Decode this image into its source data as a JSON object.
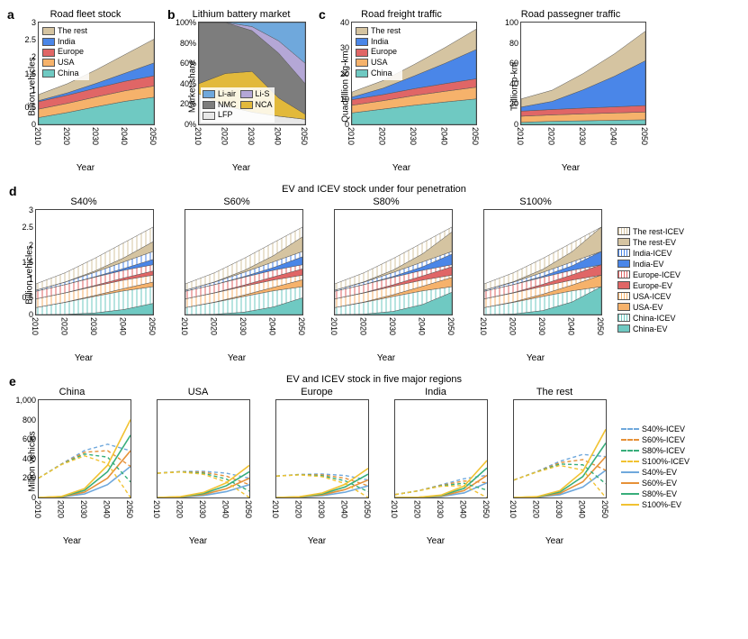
{
  "years": [
    2010,
    2020,
    2030,
    2040,
    2050
  ],
  "xticks": [
    "2010",
    "2020",
    "2030",
    "2040",
    "2050"
  ],
  "palette": {
    "china": "#6fc9c2",
    "usa": "#f6b26b",
    "europe": "#e06666",
    "india": "#4a86e8",
    "rest": "#d5c4a1"
  },
  "hatch_bg": "#ffffff",
  "a": {
    "label": "a",
    "title": "Road fleet stock",
    "ylabel": "Billion vehicles",
    "xlabel": "Year",
    "ylim": [
      0,
      3.0
    ],
    "ytick_step": 0.5,
    "series": {
      "china": [
        0.2,
        0.35,
        0.52,
        0.68,
        0.8
      ],
      "usa": [
        0.25,
        0.27,
        0.29,
        0.31,
        0.33
      ],
      "europe": [
        0.22,
        0.24,
        0.26,
        0.28,
        0.3
      ],
      "india": [
        0.03,
        0.07,
        0.14,
        0.24,
        0.38
      ],
      "rest": [
        0.18,
        0.27,
        0.4,
        0.55,
        0.7
      ]
    },
    "legend_order": [
      "rest",
      "india",
      "europe",
      "usa",
      "china"
    ],
    "legend_labels": {
      "rest": "The rest",
      "india": "India",
      "europe": "Europe",
      "usa": "USA",
      "china": "China"
    }
  },
  "b": {
    "label": "b",
    "title": "Lithium battery market",
    "ylabel": "Market share",
    "xlabel": "Year",
    "ylim": [
      0,
      100
    ],
    "ytick_step": 20,
    "colors": {
      "lfp": "#e8e8e8",
      "nca": "#e2b93b",
      "nmc": "#7d7d7d",
      "li_s": "#b4a7d6",
      "li_air": "#6fa8dc"
    },
    "series": {
      "lfp": [
        30,
        18,
        12,
        8,
        5
      ],
      "nca": [
        10,
        32,
        40,
        18,
        5
      ],
      "nmc": [
        60,
        50,
        40,
        44,
        30
      ],
      "li_s": [
        0,
        0,
        4,
        12,
        20
      ],
      "li_air": [
        0,
        0,
        4,
        18,
        40
      ]
    },
    "legend": [
      {
        "k": "li_air",
        "label": "Li-air"
      },
      {
        "k": "li_s",
        "label": "Li-S"
      },
      {
        "k": "nmc",
        "label": "NMC"
      },
      {
        "k": "nca",
        "label": "NCA"
      },
      {
        "k": "lfp",
        "label": "LFP"
      }
    ]
  },
  "c1": {
    "title": "Road freight traffic",
    "ylabel": "Quadrillion Kg-km",
    "xlabel": "Year",
    "ylim": [
      0,
      40
    ],
    "ytick_step": 10,
    "series": {
      "china": [
        4.5,
        6.0,
        7.5,
        8.8,
        10.0
      ],
      "usa": [
        3.0,
        3.3,
        3.8,
        4.2,
        4.6
      ],
      "europe": [
        2.2,
        2.4,
        2.7,
        3.0,
        3.3
      ],
      "india": [
        1.0,
        2.5,
        5.0,
        8.0,
        11.5
      ],
      "rest": [
        2.0,
        3.0,
        4.5,
        6.2,
        8.0
      ]
    }
  },
  "c2": {
    "title": "Road passegner traffic",
    "ylabel": "Trillion p-km",
    "xlabel": "Year",
    "ylim": [
      0,
      100
    ],
    "ytick_step": 20,
    "series": {
      "china": [
        2.0,
        3.0,
        3.5,
        4.0,
        4.5
      ],
      "usa": [
        6.0,
        6.3,
        6.8,
        7.2,
        7.6
      ],
      "europe": [
        5.0,
        5.3,
        5.7,
        6.0,
        6.4
      ],
      "india": [
        4.0,
        8.0,
        18.0,
        30.0,
        44.0
      ],
      "rest": [
        8.0,
        11.0,
        16.0,
        22.0,
        29.0
      ]
    },
    "dip_years": [
      2020,
      2021
    ],
    "dip_factor": 0.82
  },
  "c_label": "c",
  "c_legend_order": [
    "rest",
    "india",
    "europe",
    "usa",
    "china"
  ],
  "c_legend_labels": {
    "rest": "The rest",
    "india": "India",
    "europe": "Europe",
    "usa": "USA",
    "china": "China"
  },
  "d": {
    "label": "d",
    "main_title": "EV and ICEV stock under four penetration",
    "ylabel": "Billion vehicles",
    "xlabel": "Year",
    "ylim": [
      0,
      3.0
    ],
    "ytick_step": 0.5,
    "scenarios": [
      "S40%",
      "S60%",
      "S80%",
      "S100%"
    ],
    "ev_frac_2050": {
      "S40%": 0.4,
      "S60%": 0.6,
      "S80%": 0.8,
      "S100%": 1.0
    },
    "totals": {
      "china": [
        0.2,
        0.35,
        0.52,
        0.68,
        0.8
      ],
      "usa": [
        0.25,
        0.27,
        0.29,
        0.31,
        0.33
      ],
      "europe": [
        0.22,
        0.24,
        0.26,
        0.28,
        0.3
      ],
      "india": [
        0.03,
        0.07,
        0.14,
        0.24,
        0.38
      ],
      "rest": [
        0.18,
        0.27,
        0.4,
        0.55,
        0.7
      ]
    },
    "legend": [
      {
        "label": "The rest-ICEV",
        "color": "#d5c4a1",
        "hatch": true
      },
      {
        "label": "The rest-EV",
        "color": "#d5c4a1",
        "hatch": false
      },
      {
        "label": "India-ICEV",
        "color": "#4a86e8",
        "hatch": true
      },
      {
        "label": "India-EV",
        "color": "#4a86e8",
        "hatch": false
      },
      {
        "label": "Europe-ICEV",
        "color": "#e06666",
        "hatch": true
      },
      {
        "label": "Europe-EV",
        "color": "#e06666",
        "hatch": false
      },
      {
        "label": "USA-ICEV",
        "color": "#f6b26b",
        "hatch": true
      },
      {
        "label": "USA-EV",
        "color": "#f6b26b",
        "hatch": false
      },
      {
        "label": "China-ICEV",
        "color": "#6fc9c2",
        "hatch": true
      },
      {
        "label": "China-EV",
        "color": "#6fc9c2",
        "hatch": false
      }
    ]
  },
  "e": {
    "label": "e",
    "main_title": "EV and ICEV stock in five major regions",
    "ylabel": "Million vehicles",
    "xlabel": "Year",
    "ylim": [
      0,
      1000
    ],
    "yticks": [
      0,
      200,
      400,
      600,
      800,
      1000
    ],
    "ytick_labels": [
      "0",
      "200",
      "400",
      "600",
      "800",
      "1,000"
    ],
    "regions": [
      "China",
      "USA",
      "Europe",
      "India",
      "The rest"
    ],
    "region_keys": [
      "china",
      "usa",
      "europe",
      "india",
      "rest"
    ],
    "totals_million": {
      "china": [
        200,
        350,
        520,
        680,
        800
      ],
      "usa": [
        250,
        270,
        290,
        310,
        330
      ],
      "europe": [
        220,
        240,
        260,
        280,
        300
      ],
      "india": [
        30,
        70,
        140,
        240,
        380
      ],
      "rest": [
        180,
        270,
        400,
        550,
        700
      ]
    },
    "scen_colors": {
      "S40%": "#6fa8dc",
      "S60%": "#e69138",
      "S80%": "#38a e7b",
      "S100%": "#f1c232"
    },
    "scen_colors_fixed": {
      "S40%": "#6fa8dc",
      "S60%": "#e69138",
      "S80%": "#38ae7b",
      "S100%": "#f1c232"
    },
    "scenarios": [
      "S40%",
      "S60%",
      "S80%",
      "S100%"
    ],
    "ev_frac_2050": {
      "S40%": 0.4,
      "S60%": 0.6,
      "S80%": 0.8,
      "S100%": 1.0
    },
    "legend": [
      {
        "label": "S40%-ICEV",
        "color": "#6fa8dc",
        "dash": true
      },
      {
        "label": "S60%-ICEV",
        "color": "#e69138",
        "dash": true
      },
      {
        "label": "S80%-ICEV",
        "color": "#38ae7b",
        "dash": true
      },
      {
        "label": "S100%-ICEV",
        "color": "#f1c232",
        "dash": true
      },
      {
        "label": "S40%-EV",
        "color": "#6fa8dc",
        "dash": false
      },
      {
        "label": "S60%-EV",
        "color": "#e69138",
        "dash": false
      },
      {
        "label": "S80%-EV",
        "color": "#38ae7b",
        "dash": false
      },
      {
        "label": "S100%-EV",
        "color": "#f1c232",
        "dash": false
      }
    ]
  },
  "fonts": {
    "title": 11,
    "axis": 10,
    "tick": 9,
    "legend": 9,
    "panel_label": 14
  }
}
